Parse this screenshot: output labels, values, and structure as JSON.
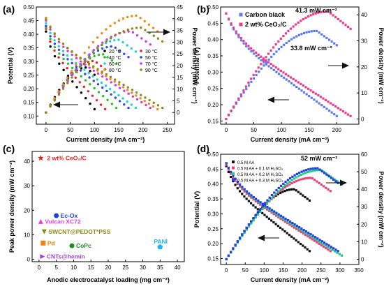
{
  "chart_data": [
    {
      "panel": "(a)",
      "type": "scatter",
      "xlabel": "Current density (mA cm⁻²)",
      "ylabel": "Potential (V)",
      "y2label": "Power density (mW cm⁻²)",
      "xlim": [
        -20,
        265
      ],
      "xticks": [
        0,
        50,
        100,
        150,
        200,
        250
      ],
      "ylim": [
        0.07,
        0.5
      ],
      "yticks": [
        0.1,
        0.15,
        0.2,
        0.25,
        0.3,
        0.35,
        0.4,
        0.45,
        0.5
      ],
      "y2lim": [
        -5,
        45
      ],
      "y2ticks": [
        0,
        5,
        10,
        15,
        20,
        25,
        30,
        35,
        40,
        45
      ],
      "legend": [
        "20 °C",
        "30 °C",
        "40 °C",
        "50 °C",
        "60 °C",
        "70 °C",
        "80 °C",
        "90 °C"
      ],
      "series": [
        {
          "name": "20 °C",
          "color": "#000000",
          "jmax": 100,
          "vocv": 0.41,
          "vend": 0.125,
          "pmax": 19.2
        },
        {
          "name": "30 °C",
          "color": "#e8262b",
          "jmax": 122,
          "vocv": 0.42,
          "vend": 0.125,
          "pmax": 22.0
        },
        {
          "name": "40 °C",
          "color": "#2bc02b",
          "jmax": 145,
          "vocv": 0.425,
          "vend": 0.13,
          "pmax": 24.8
        },
        {
          "name": "50 °C",
          "color": "#2a4ae0",
          "jmax": 170,
          "vocv": 0.43,
          "vend": 0.13,
          "pmax": 28.2
        },
        {
          "name": "60 °C",
          "color": "#1fd0d8",
          "jmax": 185,
          "vocv": 0.44,
          "vend": 0.13,
          "pmax": 31.0
        },
        {
          "name": "70 °C",
          "color": "#d63ad6",
          "jmax": 215,
          "vocv": 0.45,
          "vend": 0.13,
          "pmax": 34.6
        },
        {
          "name": "80 °C",
          "color": "#f08a1a",
          "jmax": 230,
          "vocv": 0.46,
          "vend": 0.125,
          "pmax": 41.3
        },
        {
          "name": "90 °C",
          "color": "#8a8a20",
          "jmax": 240,
          "vocv": 0.455,
          "vend": 0.13,
          "pmax": 36.2
        }
      ]
    },
    {
      "panel": "(b)",
      "type": "scatter",
      "xlabel": "Current density (mA cm⁻²)",
      "ylabel": "Potential (V)",
      "y2label": "Power density (mW cm⁻²)",
      "xlim": [
        -10,
        240
      ],
      "xticks": [
        0,
        50,
        100,
        150,
        200
      ],
      "ylim": [
        0.14,
        0.5
      ],
      "yticks": [
        0.15,
        0.2,
        0.25,
        0.3,
        0.35,
        0.4,
        0.45,
        0.5
      ],
      "y2lim": [
        -2,
        43
      ],
      "y2ticks": [
        0,
        10,
        20,
        30,
        40
      ],
      "legend": [
        "Carbon black",
        "2 wt% CeO₂/C"
      ],
      "annotations": [
        "41.3 mW cm⁻²",
        "33.8 mW cm⁻²"
      ],
      "series": [
        {
          "name": "Carbon black",
          "color": "#5b7cf0",
          "jmax": 200,
          "vocv": 0.48,
          "vend": 0.165,
          "pmax": 33.8
        },
        {
          "name": "2 wt% CeO₂/C",
          "color": "#ee3c8c",
          "jmax": 225,
          "vocv": 0.48,
          "vend": 0.165,
          "pmax": 41.3
        }
      ]
    },
    {
      "panel": "(c)",
      "type": "scatter",
      "xlabel": "Anodic electrocatalyst loading (mg cm⁻²)",
      "ylabel": "Peak power density (mW cm⁻²)",
      "xlim": [
        -2,
        42
      ],
      "xticks": [
        0,
        5,
        10,
        15,
        20,
        25,
        30,
        35,
        40
      ],
      "ylim": [
        -1,
        44
      ],
      "yticks": [
        0,
        10,
        20,
        30,
        40
      ],
      "points": [
        {
          "label": "2 wt% CeO₂/C",
          "x": 0.5,
          "y": 41.3,
          "color": "#e82020",
          "marker": "star"
        },
        {
          "label": "Ec-Ox",
          "x": 5,
          "y": 17.8,
          "color": "#1f3ee0",
          "marker": "circle"
        },
        {
          "label": "Vulcan XC72",
          "x": 0.5,
          "y": 15.4,
          "color": "#e040e0",
          "marker": "triangle-up"
        },
        {
          "label": "SWCNT@PEDOT*PSS",
          "x": 1.5,
          "y": 11.2,
          "color": "#8a8a18",
          "marker": "triangle-down"
        },
        {
          "label": "Pd",
          "x": 1.2,
          "y": 6.6,
          "color": "#f08010",
          "marker": "square"
        },
        {
          "label": "CoPc",
          "x": 9.5,
          "y": 5.5,
          "color": "#1f8a1f",
          "marker": "circle"
        },
        {
          "label": "PANI",
          "x": 35,
          "y": 5.0,
          "color": "#20b8e8",
          "marker": "pentagon"
        },
        {
          "label": "CNTs@hemin",
          "x": 1.0,
          "y": 1.1,
          "color": "#a040d8",
          "marker": "triangle-right"
        }
      ]
    },
    {
      "panel": "(d)",
      "type": "scatter",
      "xlabel": "Current density (mA cm⁻²)",
      "ylabel": "Potential (V)",
      "y2label": "Power density (mW cm⁻²)",
      "xlim": [
        -15,
        350
      ],
      "xticks": [
        0,
        50,
        100,
        150,
        200,
        250,
        300,
        350
      ],
      "ylim": [
        0.13,
        0.5
      ],
      "yticks": [
        0.15,
        0.2,
        0.25,
        0.3,
        0.35,
        0.4,
        0.45,
        0.5
      ],
      "y2lim": [
        -3,
        60
      ],
      "y2ticks": [
        0,
        10,
        20,
        30,
        40,
        50,
        60
      ],
      "legend": [
        "0.5 M AA",
        "0.5 M AA + 0.1 M H₂SO₄",
        "0.5 M AA + 0.2 M H₂SO₄",
        "0.5 M AA + 0.3 M H₂SO₄"
      ],
      "annotations": [
        "52 mW cm⁻²"
      ],
      "series": [
        {
          "name": "0.5 M AA",
          "color": "#111111",
          "jmax": 220,
          "vocv": 0.46,
          "vend": 0.175,
          "pmax": 40.0
        },
        {
          "name": "0.5 M AA + 0.1 M H₂SO₄",
          "color": "#ee4078",
          "jmax": 275,
          "vocv": 0.465,
          "vend": 0.175,
          "pmax": 46.5
        },
        {
          "name": "0.5 M AA + 0.2 M H₂SO₄",
          "color": "#22c88a",
          "jmax": 305,
          "vocv": 0.47,
          "vend": 0.16,
          "pmax": 51.0
        },
        {
          "name": "0.5 M AA + 0.3 M H₂SO₄",
          "color": "#2440e0",
          "jmax": 295,
          "vocv": 0.47,
          "vend": 0.175,
          "pmax": 52.0
        }
      ]
    }
  ]
}
